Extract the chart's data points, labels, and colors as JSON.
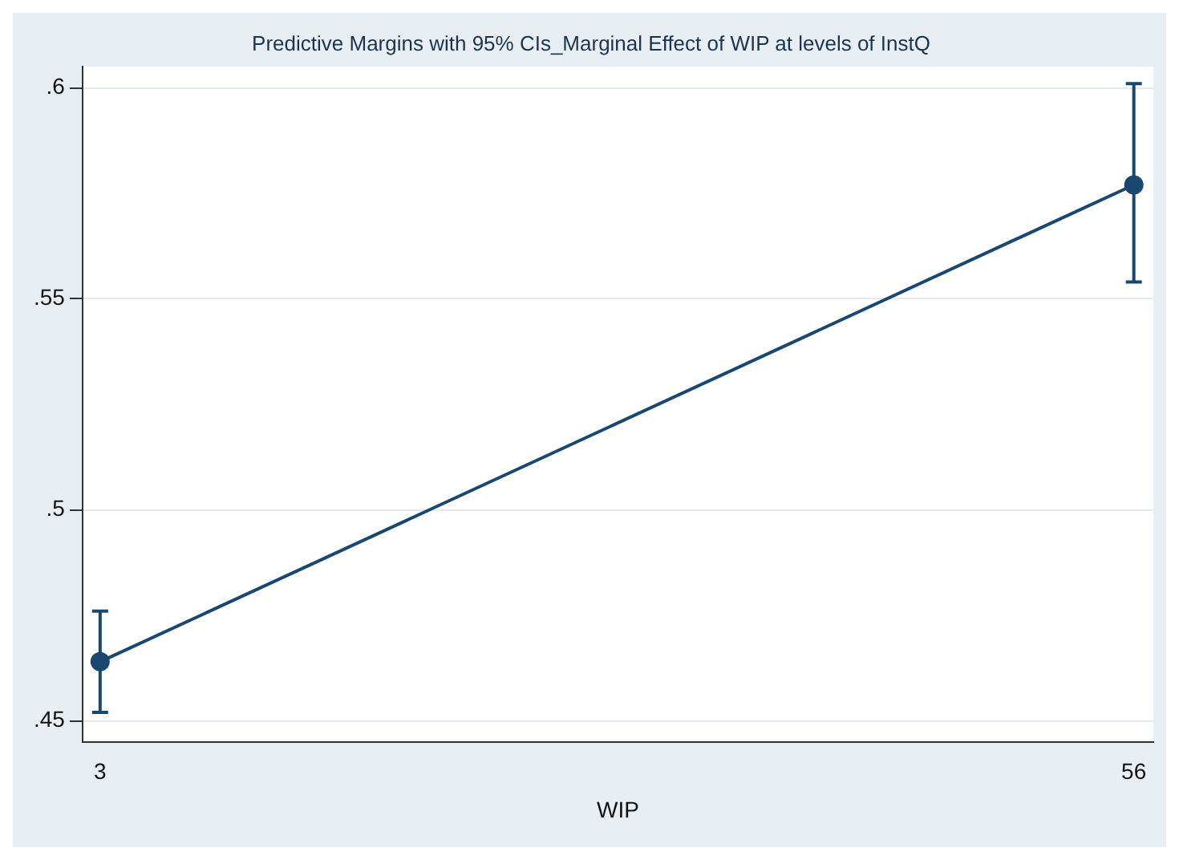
{
  "chart_data": {
    "type": "line",
    "title": "Predictive Margins with 95% CIs_Marginal Effect of WIP at levels of InstQ",
    "xlabel": "WIP",
    "x": [
      3,
      56
    ],
    "series": [
      {
        "color": "#1a476f",
        "values": [
          0.464,
          0.577
        ],
        "errors": [
          [
            0.452,
            0.476
          ],
          [
            0.554,
            0.601
          ]
        ]
      }
    ],
    "xlim": [
      2.1,
      57
    ],
    "xticks": [
      3,
      56
    ],
    "ylim": [
      0.445,
      0.605
    ],
    "yticks": [
      {
        "value": 0.45,
        "label": ".45"
      },
      {
        "value": 0.5,
        "label": ".5"
      },
      {
        "value": 0.55,
        "label": ".55"
      },
      {
        "value": 0.6,
        "label": ".6"
      }
    ],
    "grid": "y",
    "legend": false,
    "marker": "circle",
    "line_style": "solid"
  }
}
